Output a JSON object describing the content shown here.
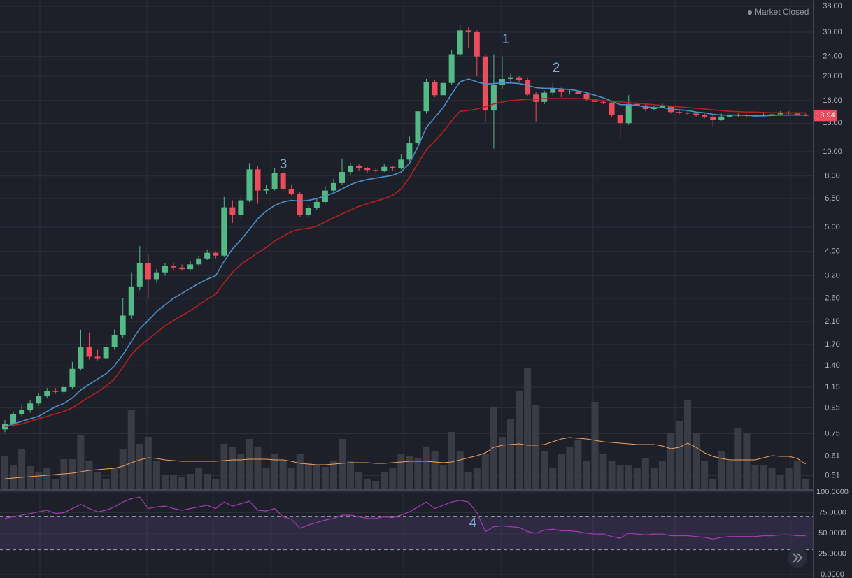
{
  "status": "Market Closed",
  "chart_data": [
    {
      "type": "candlestick",
      "log": true,
      "grid": true,
      "ylim": [
        0.45,
        40.3
      ],
      "yticks": [
        {
          "value": 38,
          "label": "38.00"
        },
        {
          "value": 30,
          "label": "30.00"
        },
        {
          "value": 24,
          "label": "24.00"
        },
        {
          "value": 20,
          "label": "20.00"
        },
        {
          "value": 16,
          "label": "16.00"
        },
        {
          "value": 13,
          "label": "13.00"
        },
        {
          "value": 10,
          "label": "10.00"
        },
        {
          "value": 8,
          "label": "8.00"
        },
        {
          "value": 6.5,
          "label": "6.50"
        },
        {
          "value": 5,
          "label": "5.00"
        },
        {
          "value": 4,
          "label": "4.00"
        },
        {
          "value": 3.2,
          "label": "3.20"
        },
        {
          "value": 2.6,
          "label": "2.60"
        },
        {
          "value": 2.1,
          "label": "2.10"
        },
        {
          "value": 1.7,
          "label": "1.70"
        },
        {
          "value": 1.4,
          "label": "1.40"
        },
        {
          "value": 1.15,
          "label": "1.15"
        },
        {
          "value": 0.95,
          "label": "0.95"
        },
        {
          "value": 0.75,
          "label": "0.75"
        },
        {
          "value": 0.61,
          "label": "0.61"
        },
        {
          "value": 0.51,
          "label": "0.51"
        }
      ],
      "up_color": "#53b987",
      "down_color": "#eb4d5c",
      "open": [
        0.78,
        0.82,
        0.9,
        0.93,
        0.99,
        1.06,
        1.11,
        1.1,
        1.15,
        1.36,
        1.66,
        1.52,
        1.5,
        1.66,
        1.86,
        2.22,
        2.9,
        3.6,
        3.1,
        3.3,
        3.5,
        3.45,
        3.4,
        3.55,
        3.75,
        3.95,
        3.85,
        6.0,
        5.6,
        6.4,
        8.5,
        7.0,
        7.1,
        8.2,
        7.1,
        6.8,
        5.6,
        5.95,
        6.3,
        7.0,
        7.5,
        8.3,
        8.8,
        8.6,
        8.45,
        8.4,
        8.7,
        8.6,
        9.3,
        10.8,
        14.5,
        19.0,
        16.8,
        18.8,
        24.5,
        30.5,
        30.0,
        24.0,
        14.6,
        18.5,
        19.5,
        19.8,
        19.3,
        16.9,
        15.8,
        17.2,
        17.8,
        17.3,
        17.4,
        17.0,
        16.2,
        15.8,
        15.7,
        14.0,
        13.0,
        15.5,
        15.3,
        14.8,
        15.0,
        15.2,
        14.4,
        14.3,
        14.2,
        14.0,
        13.8,
        13.4,
        13.8,
        14.0,
        14.0,
        13.9,
        13.9,
        14.0,
        14.1,
        14.3,
        14.2,
        14.0
      ],
      "high": [
        0.85,
        0.92,
        0.98,
        1.02,
        1.09,
        1.14,
        1.14,
        1.18,
        1.45,
        1.95,
        1.9,
        1.62,
        1.75,
        1.95,
        2.6,
        3.3,
        4.2,
        3.9,
        3.4,
        3.6,
        3.6,
        3.55,
        3.65,
        3.85,
        4.05,
        4.0,
        6.6,
        6.4,
        6.7,
        9.0,
        8.8,
        7.4,
        8.6,
        8.4,
        7.4,
        6.9,
        6.1,
        6.5,
        7.3,
        7.8,
        9.4,
        9.0,
        8.9,
        8.7,
        8.6,
        8.9,
        8.8,
        9.8,
        11.5,
        15.0,
        19.5,
        19.3,
        19.3,
        25.5,
        32.0,
        31.5,
        30.5,
        24.5,
        24.5,
        24.0,
        20.5,
        20.0,
        19.8,
        17.3,
        17.5,
        18.8,
        18.0,
        17.6,
        17.5,
        17.1,
        16.3,
        16.0,
        15.9,
        14.2,
        16.8,
        15.8,
        15.6,
        15.2,
        15.6,
        15.3,
        14.6,
        14.5,
        14.4,
        14.2,
        14.0,
        14.2,
        14.3,
        14.2,
        14.1,
        14.1,
        14.2,
        14.3,
        14.5,
        14.5,
        14.3,
        14.2
      ],
      "low": [
        0.76,
        0.8,
        0.88,
        0.91,
        0.97,
        1.04,
        1.08,
        1.08,
        1.13,
        1.34,
        1.48,
        1.47,
        1.48,
        1.62,
        1.8,
        2.15,
        2.8,
        2.6,
        3.0,
        3.2,
        3.35,
        3.35,
        3.35,
        3.5,
        3.7,
        3.75,
        3.8,
        5.2,
        5.4,
        6.3,
        6.2,
        6.8,
        7.0,
        6.9,
        6.7,
        5.5,
        5.5,
        5.85,
        6.2,
        6.9,
        7.4,
        8.1,
        8.4,
        8.2,
        8.2,
        8.3,
        8.4,
        8.5,
        9.2,
        10.6,
        14.2,
        16.5,
        16.6,
        18.5,
        24.0,
        26.0,
        20.0,
        13.2,
        10.3,
        17.8,
        18.8,
        19.0,
        16.7,
        13.2,
        15.5,
        16.8,
        16.5,
        16.9,
        16.8,
        15.9,
        15.6,
        15.5,
        13.8,
        11.3,
        12.8,
        15.0,
        14.5,
        14.6,
        14.9,
        14.2,
        14.1,
        14.0,
        13.8,
        13.6,
        12.6,
        13.3,
        13.7,
        13.8,
        13.8,
        13.8,
        13.8,
        13.9,
        14.0,
        14.1,
        13.9,
        13.85
      ],
      "close": [
        0.82,
        0.9,
        0.93,
        0.99,
        1.06,
        1.11,
        1.1,
        1.15,
        1.36,
        1.66,
        1.52,
        1.5,
        1.66,
        1.86,
        2.22,
        2.9,
        3.6,
        3.1,
        3.3,
        3.5,
        3.45,
        3.4,
        3.55,
        3.75,
        3.95,
        3.85,
        6.0,
        5.6,
        6.4,
        8.5,
        7.0,
        7.1,
        8.2,
        7.1,
        6.8,
        5.6,
        5.95,
        6.3,
        7.0,
        7.5,
        8.3,
        8.8,
        8.6,
        8.45,
        8.4,
        8.7,
        8.6,
        9.3,
        10.8,
        14.5,
        19.0,
        16.8,
        18.8,
        24.5,
        30.5,
        30.0,
        24.0,
        14.6,
        18.5,
        19.5,
        19.8,
        19.3,
        16.9,
        15.8,
        17.2,
        17.8,
        17.3,
        17.4,
        17.0,
        16.2,
        15.8,
        15.7,
        14.0,
        13.0,
        15.5,
        15.3,
        14.8,
        15.0,
        15.2,
        14.4,
        14.3,
        14.2,
        14.0,
        13.8,
        13.4,
        13.8,
        14.0,
        14.0,
        13.9,
        13.9,
        14.0,
        14.1,
        14.3,
        14.2,
        14.0,
        13.94
      ],
      "overlays": [
        {
          "color": "#4a8fc9",
          "values": [
            0.8,
            0.82,
            0.84,
            0.86,
            0.88,
            0.92,
            0.96,
            0.99,
            1.04,
            1.12,
            1.18,
            1.24,
            1.3,
            1.4,
            1.55,
            1.75,
            1.97,
            2.12,
            2.3,
            2.45,
            2.6,
            2.72,
            2.85,
            2.98,
            3.1,
            3.2,
            3.65,
            4.1,
            4.45,
            4.9,
            5.4,
            5.8,
            6.1,
            6.3,
            6.4,
            6.35,
            6.4,
            6.5,
            6.65,
            6.85,
            7.1,
            7.4,
            7.6,
            7.75,
            7.85,
            7.95,
            8.05,
            8.3,
            9.0,
            10.5,
            12.5,
            13.7,
            15.0,
            17.0,
            19.0,
            19.5,
            19.0,
            18.6,
            18.7,
            18.8,
            18.8,
            18.7,
            18.4,
            18.0,
            17.9,
            17.9,
            17.8,
            17.7,
            17.5,
            17.2,
            16.8,
            16.4,
            15.9,
            15.4,
            15.4,
            15.3,
            15.1,
            15.0,
            15.0,
            14.8,
            14.7,
            14.6,
            14.4,
            14.3,
            14.1,
            14.0,
            14.0,
            14.0,
            13.95,
            13.9,
            13.9,
            13.95,
            14.0,
            14.0,
            14.0,
            14.0
          ]
        },
        {
          "color": "#b3201e",
          "values": [
            0.8,
            0.81,
            0.82,
            0.84,
            0.86,
            0.88,
            0.9,
            0.92,
            0.95,
            1.0,
            1.05,
            1.1,
            1.16,
            1.24,
            1.38,
            1.55,
            1.68,
            1.78,
            1.9,
            2.02,
            2.12,
            2.22,
            2.32,
            2.45,
            2.58,
            2.7,
            3.0,
            3.3,
            3.55,
            3.75,
            3.95,
            4.15,
            4.4,
            4.6,
            4.8,
            4.9,
            4.95,
            5.05,
            5.25,
            5.45,
            5.65,
            5.85,
            6.05,
            6.2,
            6.35,
            6.5,
            6.7,
            7.1,
            7.9,
            9.0,
            10.2,
            11.0,
            12.0,
            13.3,
            14.5,
            14.6,
            14.8,
            15.1,
            15.5,
            15.8,
            16.0,
            16.1,
            16.2,
            16.2,
            16.3,
            16.3,
            16.3,
            16.3,
            16.3,
            16.2,
            16.1,
            16.0,
            15.9,
            15.8,
            15.7,
            15.6,
            15.5,
            15.4,
            15.3,
            15.2,
            15.1,
            15.0,
            14.9,
            14.8,
            14.7,
            14.6,
            14.5,
            14.45,
            14.4,
            14.4,
            14.35,
            14.3,
            14.3,
            14.3,
            14.3,
            14.3
          ]
        }
      ],
      "volume": {
        "color": "#3c3f48",
        "values": [
          48,
          35,
          57,
          33,
          25,
          30,
          15,
          43,
          43,
          78,
          40,
          25,
          15,
          30,
          58,
          114,
          65,
          75,
          40,
          20,
          20,
          18,
          22,
          30,
          22,
          15,
          65,
          60,
          50,
          72,
          60,
          30,
          50,
          40,
          30,
          50,
          38,
          35,
          32,
          40,
          72,
          40,
          25,
          15,
          12,
          25,
          30,
          50,
          48,
          45,
          60,
          55,
          35,
          82,
          55,
          25,
          30,
          50,
          118,
          75,
          100,
          140,
          173,
          120,
          55,
          30,
          50,
          60,
          70,
          40,
          125,
          50,
          40,
          35,
          35,
          30,
          45,
          30,
          40,
          80,
          97,
          128,
          80,
          40,
          15,
          55,
          40,
          88,
          80,
          35,
          35,
          30,
          20,
          30,
          40,
          15
        ],
        "ma": {
          "color": "#f0a05a",
          "values": [
            15,
            16,
            17,
            18,
            19,
            20,
            21,
            22,
            23,
            25,
            27,
            28,
            29,
            30,
            33,
            38,
            42,
            45,
            44,
            42,
            41,
            40,
            40,
            40,
            40,
            40,
            41,
            42,
            42,
            43,
            43,
            43,
            42,
            42,
            40,
            37,
            36,
            35,
            35,
            36,
            37,
            38,
            38,
            38,
            37,
            37,
            38,
            39,
            40,
            40,
            40,
            39,
            38,
            39,
            42,
            45,
            48,
            52,
            60,
            63,
            64,
            65,
            63,
            63,
            64,
            68,
            72,
            74,
            73,
            72,
            70,
            68,
            67,
            66,
            65,
            64,
            64,
            64,
            62,
            58,
            60,
            66,
            60,
            52,
            47,
            44,
            42,
            42,
            42,
            42,
            45,
            48,
            47,
            47,
            44,
            36
          ]
        }
      },
      "annotations": [
        "1",
        "2",
        "3"
      ]
    },
    {
      "type": "line",
      "grid": true,
      "color": "#a33bb5",
      "ylim": [
        0,
        100
      ],
      "yticks": [
        {
          "value": 100,
          "label": "100.0000"
        },
        {
          "value": 75,
          "label": "75.0000"
        },
        {
          "value": 50,
          "label": "50.0000"
        },
        {
          "value": 25,
          "label": "25.0000"
        },
        {
          "value": 0,
          "label": "0.0000"
        }
      ],
      "bands": [
        30,
        70
      ],
      "band_color": "#7e57c2",
      "values": [
        68,
        70,
        72,
        74,
        76,
        78,
        74,
        75,
        80,
        85,
        80,
        76,
        78,
        82,
        88,
        92,
        94,
        80,
        82,
        83,
        80,
        78,
        80,
        82,
        84,
        80,
        88,
        83,
        86,
        89,
        78,
        77,
        80,
        70,
        67,
        56,
        60,
        63,
        66,
        68,
        72,
        72,
        70,
        68,
        68,
        70,
        69,
        72,
        76,
        82,
        88,
        80,
        84,
        88,
        90,
        88,
        75,
        52,
        58,
        59,
        58,
        57,
        52,
        50,
        54,
        55,
        53,
        53,
        52,
        50,
        49,
        49,
        46,
        44,
        50,
        49,
        48,
        49,
        49,
        47,
        47,
        47,
        46,
        45,
        43,
        45,
        46,
        46,
        46,
        46,
        47,
        47,
        48,
        48,
        47,
        47
      ],
      "annotations": [
        "4"
      ]
    }
  ]
}
